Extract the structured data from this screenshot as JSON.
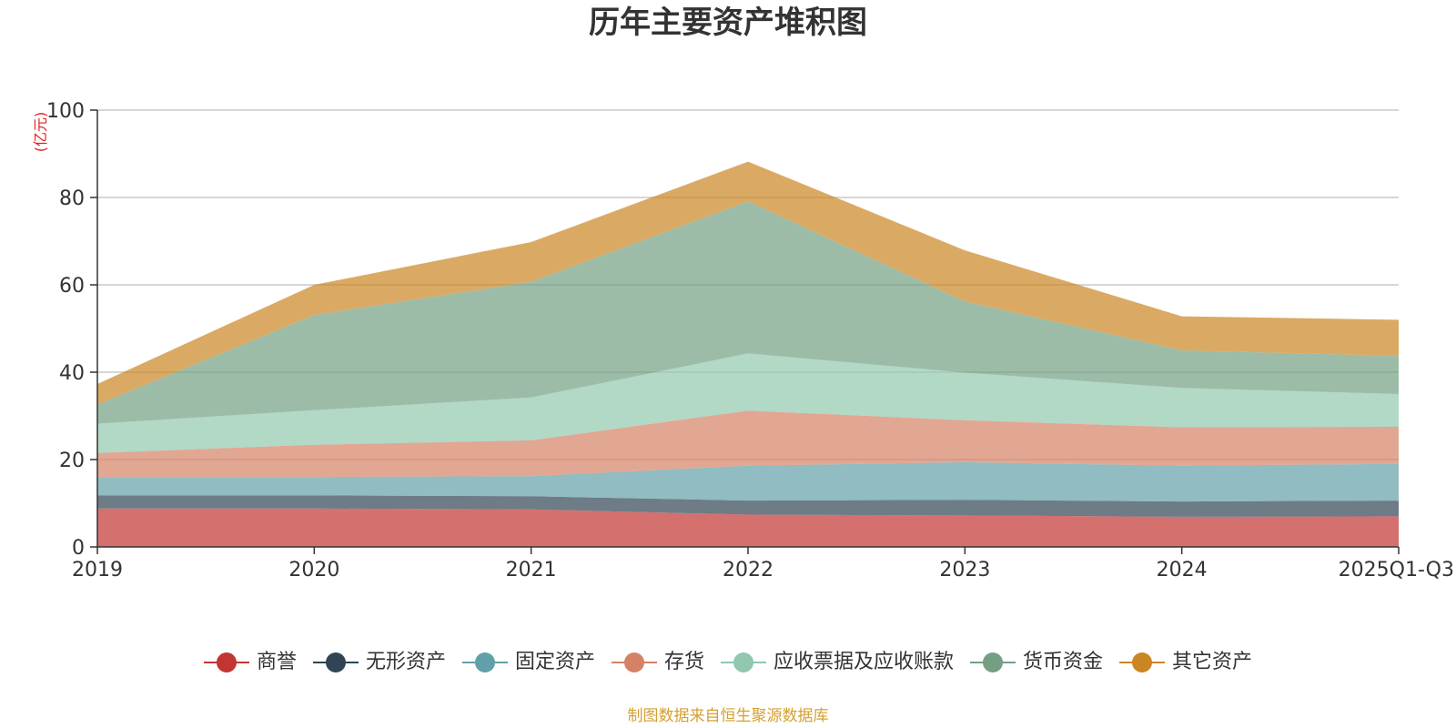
{
  "chart_data": {
    "type": "area",
    "stacked": true,
    "title": "历年主要资产堆积图",
    "unit_label": "(亿元)",
    "categories": [
      "2019",
      "2020",
      "2021",
      "2022",
      "2023",
      "2024",
      "2025Q1-Q3"
    ],
    "ylim": [
      0,
      100
    ],
    "yticks": [
      0,
      20,
      40,
      60,
      80,
      100
    ],
    "grid": true,
    "legend_position": "bottom",
    "series": [
      {
        "name": "商誉",
        "color": "#c23531",
        "values": [
          8.8,
          8.8,
          8.6,
          7.4,
          7.2,
          6.9,
          7.0
        ]
      },
      {
        "name": "无形资产",
        "color": "#2f4554",
        "values": [
          3.0,
          3.0,
          3.0,
          3.2,
          3.6,
          3.5,
          3.6
        ]
      },
      {
        "name": "固定资产",
        "color": "#61a0a8",
        "values": [
          4.2,
          4.2,
          4.6,
          8.0,
          8.6,
          8.2,
          8.4
        ]
      },
      {
        "name": "存货",
        "color": "#d48265",
        "values": [
          5.5,
          7.4,
          8.2,
          12.6,
          9.6,
          8.8,
          8.5
        ]
      },
      {
        "name": "应收票据及应收账款",
        "color": "#91c7ae",
        "values": [
          6.7,
          7.9,
          9.8,
          13.1,
          10.9,
          9.0,
          7.5
        ]
      },
      {
        "name": "货币资金",
        "color": "#749f83",
        "values": [
          4.4,
          21.8,
          26.5,
          34.8,
          16.3,
          8.6,
          8.7
        ]
      },
      {
        "name": "其它资产",
        "color": "#ca8622",
        "values": [
          4.7,
          6.9,
          9.1,
          9.1,
          11.7,
          7.8,
          8.3
        ]
      }
    ]
  },
  "footer": {
    "source_note": "制图数据来自恒生聚源数据库"
  }
}
